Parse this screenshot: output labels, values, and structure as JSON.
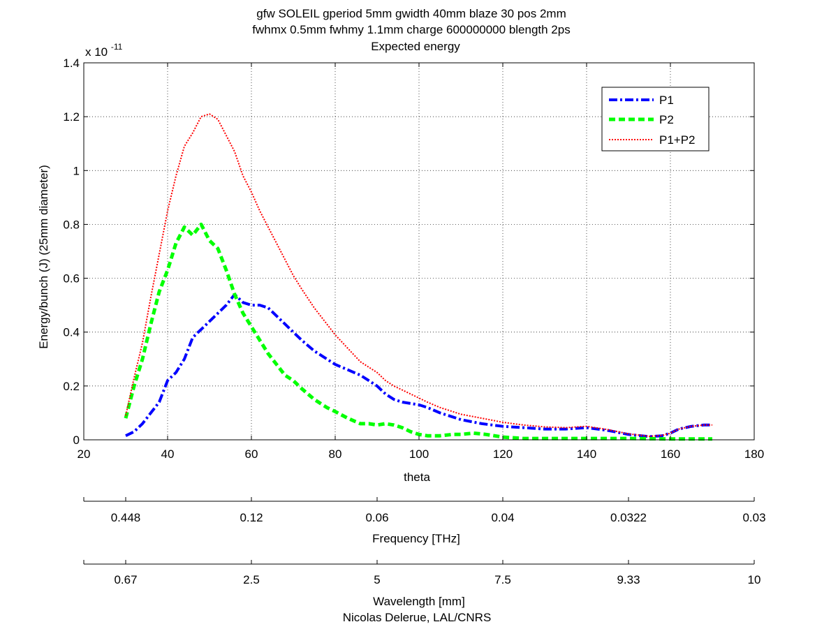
{
  "chart_data": {
    "type": "line",
    "title": [
      "gfw SOLEIL gperiod 5mm gwidth 40mm blaze 30 pos 2mm",
      "fwhmx 0.5mm fwhmy 1.1mm charge 600000000 blength 2ps",
      "Expected energy"
    ],
    "xlabel": "theta",
    "ylabel": "Energy/bunch (J) (25mm diameter)",
    "y_multiplier": {
      "base": "x 10",
      "exponent": "-11"
    },
    "xlim": [
      20,
      180
    ],
    "ylim": [
      0,
      1.4e-11
    ],
    "x_ticks": [
      20,
      40,
      60,
      80,
      100,
      120,
      140,
      160,
      180
    ],
    "x_tick_labels": [
      "20",
      "40",
      "60",
      "80",
      "100",
      "120",
      "140",
      "160",
      "180"
    ],
    "y_ticks": [
      0,
      2e-12,
      4e-12,
      6e-12,
      8e-12,
      1e-11,
      1.2e-11,
      1.4e-11
    ],
    "y_tick_labels": [
      "0",
      "0.2",
      "0.4",
      "0.6",
      "0.8",
      "1",
      "1.2",
      "1.4"
    ],
    "grid": true,
    "legend_position": "top-right",
    "series": [
      {
        "name": "P1",
        "color": "#0000ff",
        "style": "dash-dot",
        "x": [
          30,
          32,
          34,
          36,
          38,
          40,
          42,
          44,
          46,
          48,
          50,
          52,
          54,
          56,
          58,
          60,
          62,
          64,
          66,
          68,
          70,
          72,
          75,
          78,
          80,
          83,
          86,
          88,
          90,
          92,
          94,
          96,
          98,
          100,
          102,
          105,
          108,
          110,
          115,
          120,
          125,
          130,
          135,
          140,
          145,
          150,
          155,
          158,
          160,
          162,
          165,
          168,
          170
        ],
        "y": [
          1.5e-13,
          3e-13,
          6e-13,
          1e-12,
          1.4e-12,
          2.2e-12,
          2.5e-12,
          3e-12,
          3.8e-12,
          4.1e-12,
          4.4e-12,
          4.7e-12,
          5e-12,
          5.4e-12,
          5.1e-12,
          5e-12,
          5e-12,
          4.9e-12,
          4.6e-12,
          4.3e-12,
          4e-12,
          3.7e-12,
          3.3e-12,
          3e-12,
          2.8e-12,
          2.6e-12,
          2.4e-12,
          2.2e-12,
          2e-12,
          1.7e-12,
          1.5e-12,
          1.4e-12,
          1.35e-12,
          1.3e-12,
          1.2e-12,
          1e-12,
          8.5e-13,
          7.5e-13,
          6e-13,
          5e-13,
          4.5e-13,
          4e-13,
          4e-13,
          4.5e-13,
          3.5e-13,
          2e-13,
          1.2e-13,
          1.5e-13,
          2.5e-13,
          4e-13,
          5e-13,
          5.5e-13,
          5.5e-13
        ]
      },
      {
        "name": "P2",
        "color": "#00ff00",
        "style": "dashed",
        "x": [
          30,
          32,
          34,
          36,
          38,
          40,
          42,
          44,
          46,
          47,
          48,
          50,
          52,
          54,
          56,
          58,
          60,
          62,
          64,
          66,
          68,
          70,
          72,
          75,
          78,
          80,
          83,
          86,
          88,
          90,
          92,
          94,
          96,
          98,
          100,
          102,
          105,
          108,
          110,
          113,
          116,
          120,
          125,
          130,
          140,
          150,
          160,
          170
        ],
        "y": [
          8e-13,
          2e-12,
          3e-12,
          4.3e-12,
          5.5e-12,
          6.3e-12,
          7.3e-12,
          7.9e-12,
          7.6e-12,
          7.8e-12,
          8e-12,
          7.4e-12,
          7.1e-12,
          6.3e-12,
          5.4e-12,
          4.7e-12,
          4.2e-12,
          3.7e-12,
          3.2e-12,
          2.8e-12,
          2.4e-12,
          2.2e-12,
          1.9e-12,
          1.5e-12,
          1.2e-12,
          1.05e-12,
          8e-13,
          6e-13,
          6e-13,
          5.5e-13,
          6e-13,
          5.5e-13,
          4.5e-13,
          3e-13,
          2e-13,
          1.5e-13,
          1.5e-13,
          2e-13,
          2e-13,
          2.5e-13,
          2e-13,
          1e-13,
          5e-14,
          5e-14,
          5e-14,
          5e-14,
          3e-14,
          3e-14
        ]
      },
      {
        "name": "P1+P2",
        "color": "#ff0000",
        "style": "dotted",
        "x": [
          30,
          32,
          34,
          36,
          38,
          40,
          42,
          44,
          46,
          48,
          50,
          52,
          54,
          56,
          58,
          60,
          62,
          64,
          66,
          68,
          70,
          72,
          75,
          78,
          80,
          83,
          86,
          88,
          90,
          92,
          94,
          96,
          98,
          100,
          102,
          105,
          108,
          110,
          115,
          120,
          125,
          130,
          135,
          140,
          145,
          150,
          155,
          158,
          160,
          162,
          165,
          168,
          170
        ],
        "y": [
          9e-13,
          2.3e-12,
          3.6e-12,
          5.3e-12,
          6.9e-12,
          8.5e-12,
          9.8e-12,
          1.09e-11,
          1.14e-11,
          1.2e-11,
          1.21e-11,
          1.19e-11,
          1.13e-11,
          1.07e-11,
          9.8e-12,
          9.2e-12,
          8.5e-12,
          7.9e-12,
          7.3e-12,
          6.7e-12,
          6.1e-12,
          5.6e-12,
          4.9e-12,
          4.3e-12,
          3.9e-12,
          3.4e-12,
          2.9e-12,
          2.7e-12,
          2.5e-12,
          2.2e-12,
          2e-12,
          1.85e-12,
          1.7e-12,
          1.55e-12,
          1.4e-12,
          1.2e-12,
          1.05e-12,
          9.5e-13,
          8e-13,
          6.5e-13,
          5.5e-13,
          4.8e-13,
          4.5e-13,
          5e-13,
          3.8e-13,
          2.2e-13,
          1.3e-13,
          1.6e-13,
          2.5e-13,
          4e-13,
          5e-13,
          5.5e-13,
          5.5e-13
        ]
      }
    ],
    "secondary_axes": [
      {
        "label": "Frequency [THz]",
        "tick_labels": [
          "0.448",
          "0.12",
          "0.06",
          "0.04",
          "0.0322",
          "0.03"
        ],
        "tick_theta": [
          30,
          60,
          90,
          120,
          150,
          180
        ]
      },
      {
        "label": "Wavelength [mm]",
        "tick_labels": [
          "0.67",
          "2.5",
          "5",
          "7.5",
          "9.33",
          "10"
        ],
        "tick_theta": [
          30,
          60,
          90,
          120,
          150,
          180
        ]
      }
    ],
    "credit": "Nicolas Delerue, LAL/CNRS"
  }
}
